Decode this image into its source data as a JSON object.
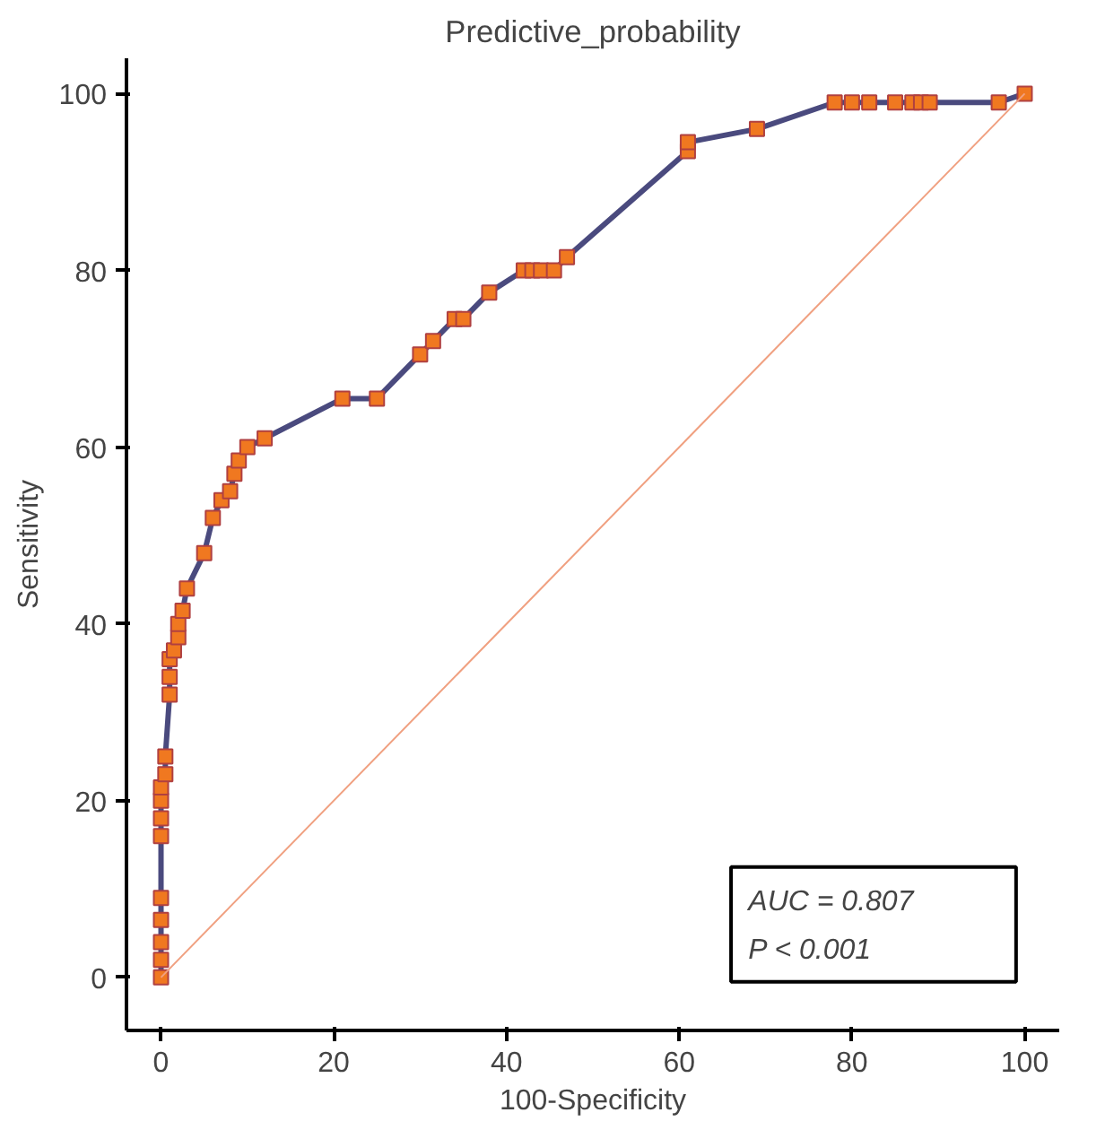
{
  "chart_data": {
    "type": "line",
    "title": "Predictive_probability",
    "xlabel": "100-Specificity",
    "ylabel": "Sensitivity",
    "series": [
      {
        "color": "#4a4a7e",
        "marker": "square",
        "x": [
          0,
          0,
          0,
          0,
          0,
          0,
          0,
          0,
          0,
          0.5,
          0.5,
          1,
          1,
          1,
          1.5,
          2,
          2,
          2.5,
          3,
          5,
          6,
          7,
          8,
          8.5,
          9,
          10,
          12,
          21,
          25,
          30,
          31.5,
          34,
          35,
          38,
          42,
          43,
          44,
          45.5,
          47,
          61,
          61,
          69,
          78,
          80,
          82,
          85,
          87,
          88,
          89,
          97,
          100
        ],
        "values": [
          0,
          2,
          4,
          6.5,
          9,
          16,
          18,
          20,
          21.5,
          23,
          25,
          32,
          34,
          36,
          37,
          38.5,
          40,
          41.5,
          44,
          48,
          52,
          54,
          55,
          57,
          58.5,
          60,
          61,
          65.5,
          65.5,
          70.5,
          72,
          74.5,
          74.5,
          77.5,
          80,
          80,
          80,
          80,
          81.5,
          93.5,
          94.5,
          96,
          99,
          99,
          99,
          99,
          99,
          99,
          99,
          99,
          100
        ]
      },
      {
        "color": "#f0a080",
        "marker": "none",
        "x": [
          0,
          100
        ],
        "values": [
          0,
          100
        ]
      }
    ],
    "xlim": [
      -4,
      104
    ],
    "ylim": [
      -6,
      104
    ],
    "xticks": [
      0,
      20,
      40,
      60,
      80,
      100
    ],
    "yticks": [
      0,
      20,
      40,
      60,
      80,
      100
    ],
    "grid": false,
    "annotations": [
      "AUC = 0.807",
      "P < 0.001"
    ]
  }
}
